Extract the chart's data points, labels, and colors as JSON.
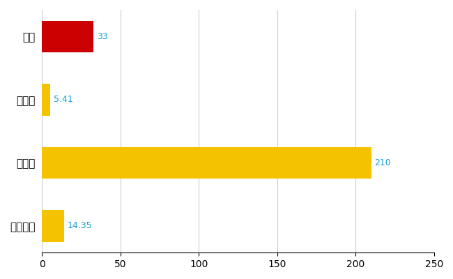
{
  "categories": [
    "北区",
    "県平均",
    "県最大",
    "全国平均"
  ],
  "values": [
    33,
    5.41,
    210,
    14.35
  ],
  "bar_colors": [
    "#cc0000",
    "#f5c200",
    "#f5c200",
    "#f5c200"
  ],
  "value_labels": [
    "33",
    "5.41",
    "210",
    "14.35"
  ],
  "xlim": [
    0,
    250
  ],
  "xticks": [
    0,
    50,
    100,
    150,
    200,
    250
  ],
  "background_color": "#ffffff",
  "grid_color": "#cccccc",
  "label_color": "#1a9fd4",
  "bar_height": 0.5,
  "figsize": [
    6.5,
    4.0
  ],
  "dpi": 100
}
